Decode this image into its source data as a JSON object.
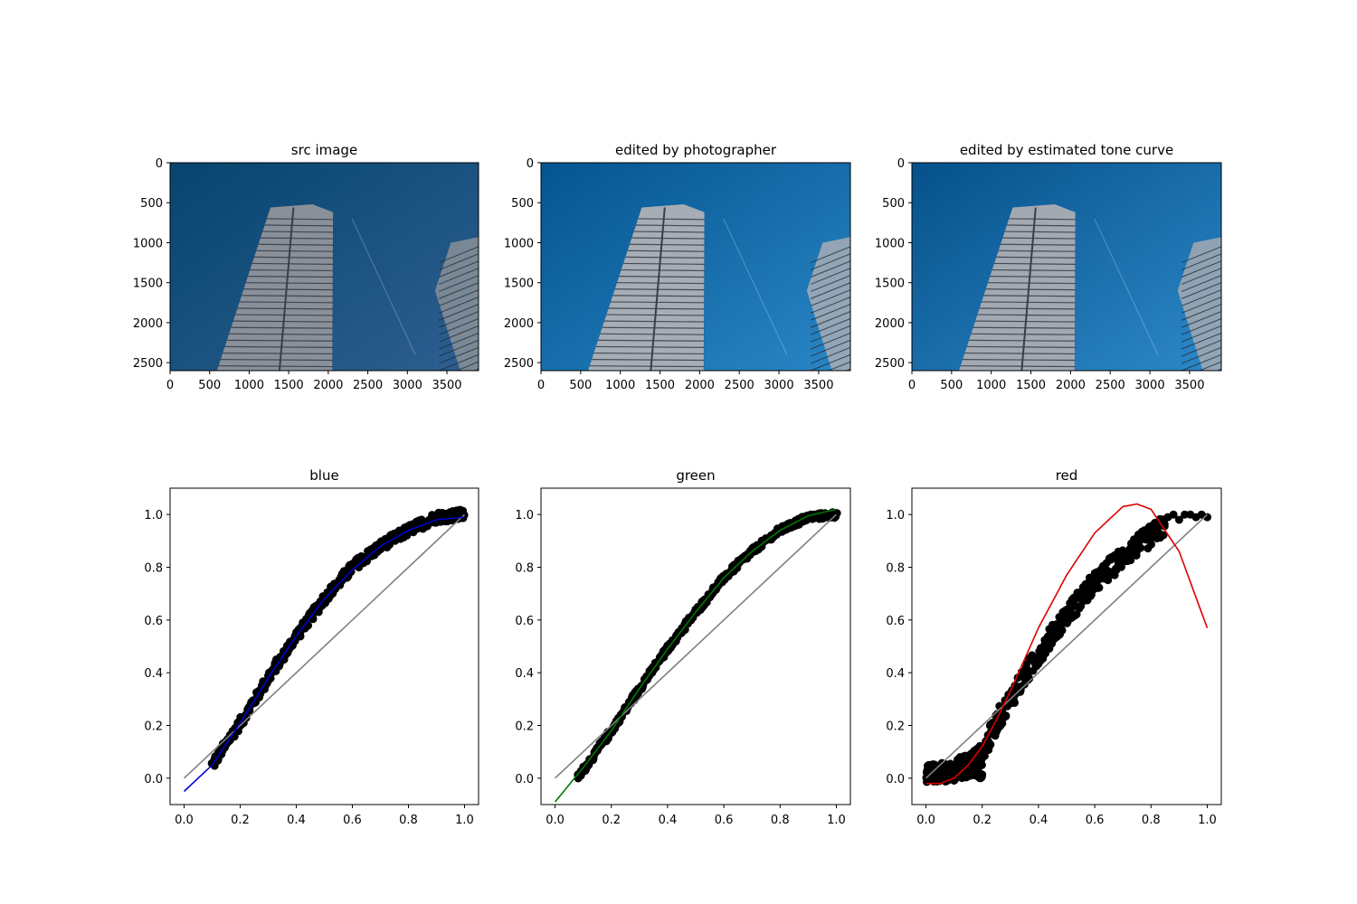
{
  "chart_data": [
    {
      "type": "image",
      "title": "src image",
      "image_size": [
        3900,
        2600
      ],
      "xticks": [
        0,
        500,
        1000,
        1500,
        2000,
        2500,
        3000,
        3500
      ],
      "yticks": [
        0,
        500,
        1000,
        1500,
        2000,
        2500
      ],
      "colors": {
        "sky_top": "#06456f",
        "sky_bottom": "#2e5f90",
        "building": "#8a9099"
      }
    },
    {
      "type": "image",
      "title": "edited by photographer",
      "image_size": [
        3900,
        2600
      ],
      "xticks": [
        0,
        500,
        1000,
        1500,
        2000,
        2500,
        3000,
        3500
      ],
      "yticks": [
        0,
        500,
        1000,
        1500,
        2000,
        2500
      ],
      "colors": {
        "sky_top": "#04558f",
        "sky_bottom": "#2a86c6",
        "building": "#a7adb5"
      }
    },
    {
      "type": "image",
      "title": "edited by estimated tone curve",
      "image_size": [
        3900,
        2600
      ],
      "xticks": [
        0,
        500,
        1000,
        1500,
        2000,
        2500,
        3000,
        3500
      ],
      "yticks": [
        0,
        500,
        1000,
        1500,
        2000,
        2500
      ],
      "colors": {
        "sky_top": "#05518a",
        "sky_bottom": "#2d88c8",
        "building": "#a3a9b2"
      }
    },
    {
      "type": "scatter",
      "title": "blue",
      "xlim": [
        -0.05,
        1.05
      ],
      "ylim": [
        -0.1,
        1.1
      ],
      "xticks": [
        0.0,
        0.2,
        0.4,
        0.6,
        0.8,
        1.0
      ],
      "yticks": [
        0.0,
        0.2,
        0.4,
        0.6,
        0.8,
        1.0
      ],
      "scatter_band": {
        "x": [
          0.1,
          0.2,
          0.3,
          0.4,
          0.5,
          0.6,
          0.7,
          0.8,
          0.9,
          1.0
        ],
        "y": [
          0.05,
          0.21,
          0.38,
          0.54,
          0.68,
          0.8,
          0.88,
          0.94,
          0.99,
          1.0
        ],
        "spread": 0.02
      },
      "fit_curve": {
        "color": "#0000cc",
        "x": [
          0.0,
          0.1,
          0.2,
          0.3,
          0.4,
          0.5,
          0.6,
          0.7,
          0.8,
          0.9,
          1.0
        ],
        "y": [
          -0.05,
          0.05,
          0.21,
          0.38,
          0.54,
          0.68,
          0.79,
          0.88,
          0.94,
          0.98,
          0.99
        ]
      },
      "identity_line": {
        "color": "#808080",
        "x": [
          0,
          1
        ],
        "y": [
          0,
          1
        ]
      }
    },
    {
      "type": "scatter",
      "title": "green",
      "xlim": [
        -0.05,
        1.05
      ],
      "ylim": [
        -0.1,
        1.1
      ],
      "xticks": [
        0.0,
        0.2,
        0.4,
        0.6,
        0.8,
        1.0
      ],
      "yticks": [
        0.0,
        0.2,
        0.4,
        0.6,
        0.8,
        1.0
      ],
      "scatter_band": {
        "x": [
          0.08,
          0.1,
          0.2,
          0.3,
          0.4,
          0.5,
          0.6,
          0.7,
          0.8,
          0.9,
          1.0
        ],
        "y": [
          0.0,
          0.03,
          0.18,
          0.34,
          0.49,
          0.63,
          0.76,
          0.86,
          0.94,
          0.99,
          1.0
        ],
        "spread": 0.012
      },
      "fit_curve": {
        "color": "#007700",
        "x": [
          0.0,
          0.1,
          0.2,
          0.3,
          0.4,
          0.5,
          0.6,
          0.7,
          0.8,
          0.9,
          1.0
        ],
        "y": [
          -0.09,
          0.04,
          0.18,
          0.34,
          0.49,
          0.63,
          0.76,
          0.86,
          0.94,
          0.995,
          1.02
        ]
      },
      "identity_line": {
        "color": "#808080",
        "x": [
          0,
          1
        ],
        "y": [
          0,
          1
        ]
      }
    },
    {
      "type": "scatter",
      "title": "red",
      "xlim": [
        -0.05,
        1.05
      ],
      "ylim": [
        -0.1,
        1.1
      ],
      "xticks": [
        0.0,
        0.2,
        0.4,
        0.6,
        0.8,
        1.0
      ],
      "yticks": [
        0.0,
        0.2,
        0.4,
        0.6,
        0.8,
        1.0
      ],
      "scatter_band": {
        "x": [
          0.0,
          0.1,
          0.2,
          0.25,
          0.3,
          0.4,
          0.5,
          0.6,
          0.7,
          0.8,
          0.85
        ],
        "y": [
          0.01,
          0.03,
          0.09,
          0.21,
          0.3,
          0.47,
          0.62,
          0.74,
          0.84,
          0.92,
          0.96
        ],
        "spread": 0.04
      },
      "scatter_extra": {
        "x": [
          0.86,
          0.88,
          0.9,
          0.92,
          0.94,
          0.96,
          0.98,
          1.0
        ],
        "y": [
          0.99,
          1.0,
          0.98,
          1.0,
          1.0,
          0.99,
          1.0,
          0.99
        ]
      },
      "fit_curve": {
        "color": "#dd0000",
        "x": [
          0.0,
          0.05,
          0.1,
          0.15,
          0.2,
          0.25,
          0.3,
          0.35,
          0.4,
          0.5,
          0.6,
          0.7,
          0.75,
          0.8,
          0.9,
          1.0
        ],
        "y": [
          -0.02,
          -0.02,
          0.0,
          0.05,
          0.12,
          0.22,
          0.33,
          0.45,
          0.57,
          0.77,
          0.93,
          1.03,
          1.04,
          1.02,
          0.86,
          0.57
        ]
      },
      "identity_line": {
        "color": "#808080",
        "x": [
          0,
          1
        ],
        "y": [
          0,
          1
        ]
      }
    }
  ]
}
